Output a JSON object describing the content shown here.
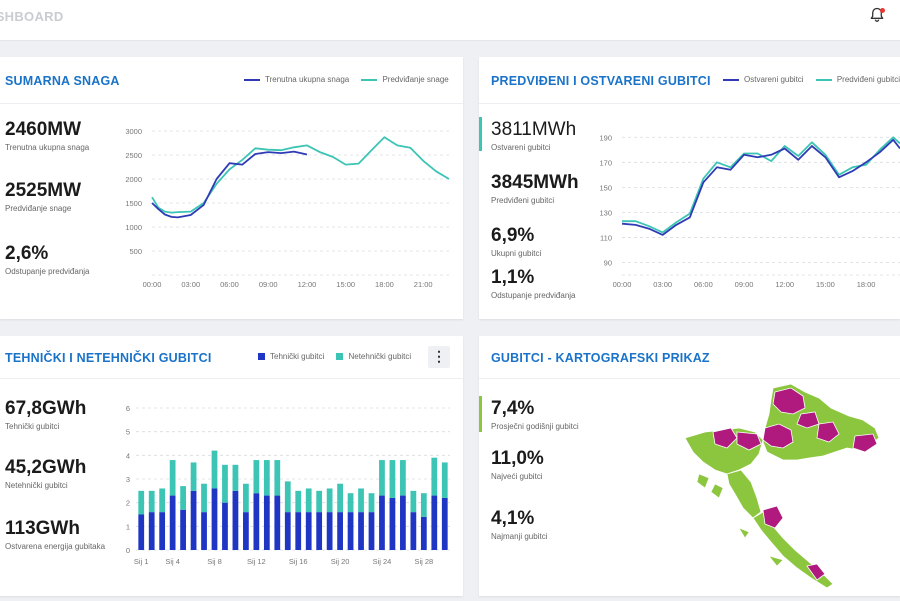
{
  "header": {
    "title": "ASHBOARD"
  },
  "colors": {
    "blue": "#2e3bb5",
    "teal": "#3cc4b4",
    "bar_blue": "#1f35c4",
    "map_green": "#8cc63f",
    "map_purple": "#b0197e",
    "title_blue": "#1a73c8"
  },
  "card1": {
    "title": "SUMARNA SNAGA",
    "legend": [
      "Trenutna ukupna snaga",
      "Predviđanje snage"
    ],
    "kpis": [
      {
        "value": "2460MW",
        "label": "Trenutna ukupna snaga"
      },
      {
        "value": "2525MW",
        "label": "Predviđanje snage"
      },
      {
        "value": "2,6%",
        "label": "Odstupanje predviđanja"
      }
    ]
  },
  "card2": {
    "title": "PREDVIĐENI I OSTVARENI GUBITCI",
    "legend": [
      "Ostvareni gubitci",
      "Predviđeni gubitci"
    ],
    "kpis": [
      {
        "value": "3811MWh",
        "label": "Ostvareni gubitci"
      },
      {
        "value": "3845MWh",
        "label": "Predviđeni gubitci"
      },
      {
        "value": "6,9%",
        "label": "Ukupni gubitci"
      },
      {
        "value": "1,1%",
        "label": "Odstupanje predviđanja"
      }
    ]
  },
  "card3": {
    "title": "TEHNIČKI I NETEHNIČKI GUBITCI",
    "legend": [
      "Tehnički gubitci",
      "Netehnički gubitci"
    ],
    "menu_icon": "more-vertical-icon",
    "kpis": [
      {
        "value": "67,8GWh",
        "label": "Tehnički gubitci"
      },
      {
        "value": "45,2GWh",
        "label": "Netehnički gubitci"
      },
      {
        "value": "113GWh",
        "label": "Ostvarena energija gubitaka"
      }
    ]
  },
  "card4": {
    "title": "GUBITCI - KARTOGRAFSKI PRIKAZ",
    "kpis": [
      {
        "value": "7,4%",
        "label": "Prosječni godišnji gubitci"
      },
      {
        "value": "11,0%",
        "label": "Najveći gubitci"
      },
      {
        "value": "4,1%",
        "label": "Najmanji gubitci"
      }
    ]
  },
  "chart_data": [
    {
      "type": "line",
      "x_labels": [
        "00:00",
        "03:00",
        "06:00",
        "09:00",
        "12:00",
        "15:00",
        "18:00",
        "21:00"
      ],
      "x_range": [
        0,
        23
      ],
      "ylim": [
        0,
        3000
      ],
      "y_ticks": [
        500,
        1000,
        1500,
        2000,
        2500,
        3000
      ],
      "grid": true,
      "legend_position": "top-right",
      "series": [
        {
          "name": "Trenutna ukupna snaga",
          "x": [
            0,
            0.5,
            1,
            1.5,
            2,
            3,
            4,
            5,
            6,
            7,
            8,
            9,
            10,
            11,
            12
          ],
          "y": [
            1500,
            1370,
            1260,
            1210,
            1200,
            1250,
            1460,
            2000,
            2330,
            2300,
            2520,
            2560,
            2540,
            2570,
            2510
          ]
        },
        {
          "name": "Predviđanje snage",
          "x": [
            0,
            0.5,
            1,
            1.5,
            2,
            3,
            4,
            5,
            6,
            7,
            8,
            9,
            10,
            11,
            12,
            13,
            14,
            15,
            16,
            17,
            18,
            19,
            20,
            21,
            22,
            23
          ],
          "y": [
            1620,
            1400,
            1320,
            1300,
            1310,
            1320,
            1500,
            1900,
            2200,
            2400,
            2640,
            2610,
            2600,
            2660,
            2700,
            2560,
            2460,
            2300,
            2320,
            2600,
            2870,
            2700,
            2650,
            2380,
            2160,
            2000
          ]
        }
      ]
    },
    {
      "type": "line",
      "x_labels": [
        "00:00",
        "03:00",
        "06:00",
        "09:00",
        "12:00",
        "15:00",
        "18:00"
      ],
      "x_range": [
        0,
        20.5
      ],
      "ylim": [
        80,
        195
      ],
      "y_ticks": [
        90,
        110,
        130,
        150,
        170,
        190
      ],
      "grid": true,
      "legend_position": "top-right",
      "series": [
        {
          "name": "Ostvareni gubitci",
          "x": [
            0,
            1,
            2,
            3,
            4,
            5,
            6,
            7,
            8,
            9,
            10,
            11,
            12,
            13,
            14,
            15,
            16,
            17,
            18,
            19,
            20,
            20.5
          ],
          "y": [
            121,
            120,
            117,
            112,
            120,
            126,
            154,
            166,
            164,
            176,
            174,
            176,
            181,
            172,
            183,
            174,
            158,
            163,
            170,
            178,
            188,
            181
          ]
        },
        {
          "name": "Predviđeni gubitci",
          "x": [
            0,
            1,
            2,
            3,
            4,
            5,
            6,
            7,
            8,
            9,
            10,
            11,
            12,
            13,
            14,
            15,
            16,
            17,
            18,
            19,
            20,
            20.5
          ],
          "y": [
            123,
            123,
            119,
            114,
            122,
            129,
            157,
            170,
            166,
            177,
            177,
            171,
            183,
            175,
            186,
            176,
            160,
            166,
            168,
            180,
            190,
            185
          ]
        }
      ]
    },
    {
      "type": "bar",
      "stacked": true,
      "x_labels": [
        "Sij 1",
        "Sij 4",
        "Sij 8",
        "Sij 12",
        "Sij 16",
        "Sij 20",
        "Sij 24",
        "Sij 28"
      ],
      "x_label_positions": [
        1,
        4,
        8,
        12,
        16,
        20,
        24,
        28
      ],
      "categories": [
        1,
        2,
        3,
        4,
        5,
        6,
        7,
        8,
        9,
        10,
        11,
        12,
        13,
        14,
        15,
        16,
        17,
        18,
        19,
        20,
        21,
        22,
        23,
        24,
        25,
        26,
        27,
        28,
        29,
        30
      ],
      "ylim": [
        0,
        6
      ],
      "y_ticks": [
        0,
        1,
        2,
        3,
        4,
        5,
        6
      ],
      "grid": true,
      "legend_position": "top-right",
      "series": [
        {
          "name": "Tehnički gubitci",
          "values": [
            1.5,
            1.6,
            1.6,
            2.3,
            1.7,
            2.5,
            1.6,
            2.6,
            2.0,
            2.5,
            1.6,
            2.4,
            2.3,
            2.3,
            1.6,
            1.6,
            1.6,
            1.6,
            1.6,
            1.6,
            1.6,
            1.6,
            1.6,
            2.3,
            2.2,
            2.3,
            1.6,
            1.4,
            2.3,
            2.2
          ]
        },
        {
          "name": "Netehnički gubitci",
          "values": [
            1.0,
            0.9,
            1.0,
            1.5,
            1.0,
            1.2,
            1.2,
            1.6,
            1.6,
            1.1,
            1.2,
            1.4,
            1.5,
            1.5,
            1.3,
            0.9,
            1.0,
            0.9,
            1.0,
            1.2,
            0.8,
            1.0,
            0.8,
            1.5,
            1.6,
            1.5,
            0.9,
            1.0,
            1.6,
            1.5
          ]
        }
      ]
    }
  ]
}
